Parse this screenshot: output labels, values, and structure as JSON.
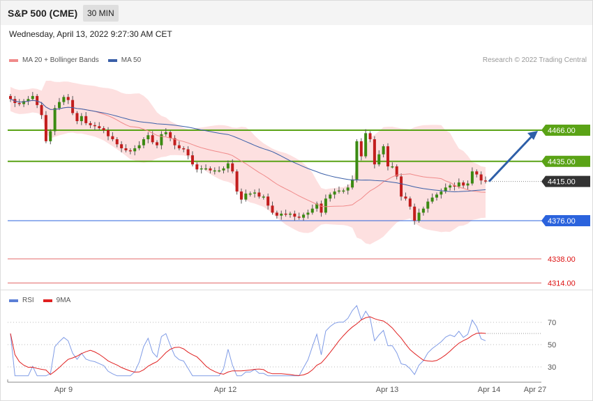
{
  "header": {
    "title": "S&P 500 (CME)",
    "interval": "30 MIN"
  },
  "datetime": "Wednesday, April 13, 2022 9:27:30 AM CET",
  "legend": [
    {
      "label": "MA 20 + Bollinger Bands",
      "color": "#f08a8a"
    },
    {
      "label": "MA 50",
      "color": "#3a5fa8"
    }
  ],
  "copyright": "Research © 2022 Trading Central",
  "rsi_legend": [
    {
      "label": "RSI",
      "color": "#5b7fd6"
    },
    {
      "label": "9MA",
      "color": "#e02020"
    }
  ],
  "colors": {
    "up": "#3b8a12",
    "down": "#c21d1d",
    "resistance": "#5aa316",
    "support": "#2b63dd",
    "target": "#e36a6a",
    "current": "#333333",
    "arrow": "#2e5fa8",
    "band": "#fde0e0"
  },
  "chart_data": [
    {
      "type": "candlestick",
      "title": "S&P 500 (CME)",
      "timeframe": "30 MIN",
      "x_ticks": [
        "Apr 9",
        "Apr 12",
        "Apr 13",
        "Apr 14",
        "Apr 27"
      ],
      "ylim": [
        4300,
        4520
      ],
      "key_levels": [
        {
          "value": 4466.0,
          "label": "4466.00",
          "kind": "resistance"
        },
        {
          "value": 4435.0,
          "label": "4435.00",
          "kind": "resistance"
        },
        {
          "value": 4415.0,
          "label": "4415.00",
          "kind": "current"
        },
        {
          "value": 4376.0,
          "label": "4376.00",
          "kind": "support"
        },
        {
          "value": 4338.0,
          "label": "4338.00",
          "kind": "target"
        },
        {
          "value": 4314.0,
          "label": "4314.00",
          "kind": "target"
        }
      ],
      "close": [
        4497,
        4493,
        4492,
        4495,
        4497,
        4500,
        4491,
        4481,
        4455,
        4465,
        4488,
        4494,
        4499,
        4496,
        4483,
        4475,
        4480,
        4473,
        4471,
        4470,
        4468,
        4466,
        4460,
        4457,
        4452,
        4448,
        4446,
        4445,
        4448,
        4451,
        4457,
        4461,
        4454,
        4451,
        4462,
        4464,
        4458,
        4451,
        4448,
        4447,
        4441,
        4432,
        4427,
        4428,
        4428,
        4426,
        4426,
        4426,
        4428,
        4433,
        4425,
        4405,
        4397,
        4403,
        4403,
        4404,
        4400,
        4400,
        4391,
        4384,
        4381,
        4383,
        4382,
        4383,
        4380,
        4379,
        4382,
        4384,
        4388,
        4393,
        4384,
        4398,
        4402,
        4405,
        4406,
        4406,
        4409,
        4417,
        4455,
        4440,
        4463,
        4457,
        4432,
        4442,
        4450,
        4430,
        4430,
        4420,
        4400,
        4398,
        4390,
        4376,
        4384,
        4388,
        4395,
        4399,
        4402,
        4405,
        4409,
        4411,
        4410,
        4414,
        4411,
        4413,
        4425,
        4422,
        4416,
        4415
      ],
      "series": [
        {
          "name": "RSI",
          "ylim": [
            20,
            80
          ],
          "levels": [
            70,
            50,
            30
          ]
        },
        {
          "name": "9MA"
        }
      ]
    }
  ]
}
